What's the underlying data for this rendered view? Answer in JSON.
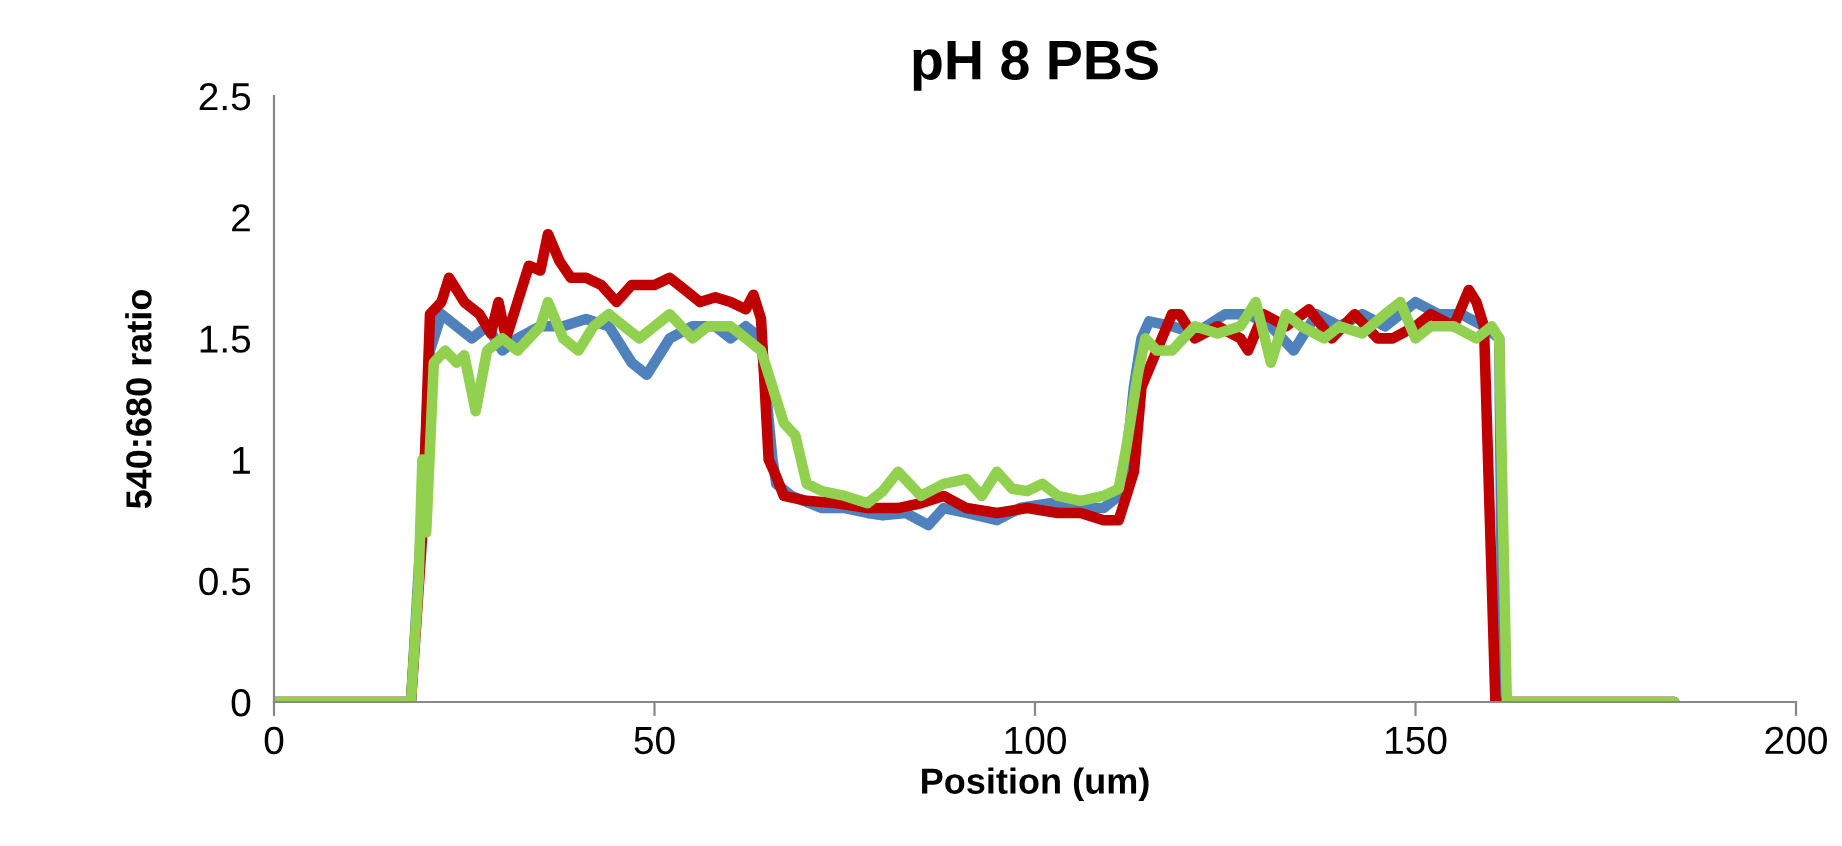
{
  "chart_data": {
    "type": "line",
    "title": "pH 8 PBS",
    "xlabel": "Position (um)",
    "ylabel": "540:680 ratio",
    "xlim": [
      0,
      200
    ],
    "xticks": [
      0,
      50,
      100,
      150,
      200
    ],
    "ylim": [
      0,
      2.5
    ],
    "yticks": [
      0,
      0.5,
      1,
      1.5,
      2,
      2.5
    ],
    "grid": false,
    "marker": "none",
    "line_style": "solid",
    "series": [
      {
        "color": "#4f81bd",
        "x": [
          0,
          18,
          19.5,
          20.5,
          22,
          24,
          26,
          28,
          30,
          32,
          35,
          38,
          41,
          44,
          47,
          49,
          52,
          55,
          58,
          60,
          62,
          64,
          65.5,
          66,
          68,
          72,
          75,
          78,
          80,
          83,
          86,
          88,
          91,
          95,
          98,
          102,
          106,
          109,
          111,
          112,
          113,
          114,
          115,
          118,
          121,
          125,
          128,
          131,
          134,
          137,
          140,
          143,
          146,
          150,
          153,
          156,
          159,
          161,
          161.5,
          184
        ],
        "values": [
          0,
          0,
          0.8,
          1.45,
          1.6,
          1.55,
          1.5,
          1.55,
          1.45,
          1.5,
          1.55,
          1.55,
          1.58,
          1.55,
          1.4,
          1.35,
          1.5,
          1.55,
          1.55,
          1.5,
          1.55,
          1.5,
          1.0,
          0.9,
          0.85,
          0.8,
          0.8,
          0.78,
          0.77,
          0.78,
          0.73,
          0.8,
          0.78,
          0.75,
          0.8,
          0.82,
          0.8,
          0.8,
          0.85,
          1.0,
          1.3,
          1.5,
          1.57,
          1.55,
          1.52,
          1.6,
          1.6,
          1.55,
          1.45,
          1.6,
          1.55,
          1.6,
          1.55,
          1.65,
          1.6,
          1.6,
          1.55,
          1.5,
          0,
          0
        ]
      },
      {
        "color": "#c00000",
        "x": [
          0,
          18,
          19.5,
          20.5,
          22,
          23,
          25,
          27,
          28.5,
          29.5,
          30.5,
          32,
          33.5,
          35,
          36,
          37.5,
          39,
          41,
          43,
          45,
          47,
          50,
          52,
          54,
          56,
          58,
          60,
          62,
          63,
          64,
          65,
          66,
          67,
          70,
          74,
          78,
          82,
          85,
          88,
          91,
          95,
          99,
          103,
          106,
          109,
          111,
          113,
          114,
          116,
          118,
          119,
          121,
          124,
          127,
          128,
          130,
          133,
          136,
          139,
          142,
          145,
          147,
          150,
          152,
          155,
          157,
          158,
          159,
          160.5,
          184
        ],
        "values": [
          0,
          0,
          0.7,
          1.6,
          1.65,
          1.75,
          1.65,
          1.6,
          1.52,
          1.65,
          1.5,
          1.65,
          1.8,
          1.78,
          1.93,
          1.82,
          1.75,
          1.75,
          1.72,
          1.65,
          1.72,
          1.72,
          1.75,
          1.7,
          1.65,
          1.67,
          1.65,
          1.62,
          1.68,
          1.58,
          1.0,
          0.93,
          0.85,
          0.83,
          0.82,
          0.8,
          0.8,
          0.82,
          0.85,
          0.8,
          0.78,
          0.8,
          0.78,
          0.78,
          0.75,
          0.75,
          0.95,
          1.3,
          1.45,
          1.6,
          1.6,
          1.5,
          1.55,
          1.5,
          1.45,
          1.6,
          1.55,
          1.62,
          1.5,
          1.6,
          1.5,
          1.5,
          1.55,
          1.6,
          1.55,
          1.7,
          1.65,
          1.55,
          0,
          0
        ]
      },
      {
        "color": "#92d050",
        "x": [
          0,
          18,
          19,
          19.5,
          20,
          21,
          22.5,
          24,
          25,
          26.5,
          28,
          30,
          32,
          35,
          36,
          38,
          40,
          42,
          44,
          46,
          48,
          50,
          52,
          55,
          57,
          60,
          62,
          64,
          65,
          67,
          68.5,
          70,
          72,
          75,
          78,
          80,
          82,
          85,
          88,
          91,
          93,
          95,
          97,
          99,
          101,
          103,
          106,
          109,
          111,
          112,
          113.5,
          114.5,
          116,
          118,
          121,
          124,
          127,
          129,
          131,
          133,
          135,
          138,
          140,
          143,
          146,
          148,
          150,
          152,
          155,
          158,
          160,
          161,
          162,
          184
        ],
        "values": [
          0,
          0,
          0.5,
          1.0,
          0.7,
          1.4,
          1.45,
          1.4,
          1.43,
          1.2,
          1.45,
          1.5,
          1.45,
          1.55,
          1.65,
          1.5,
          1.45,
          1.55,
          1.6,
          1.55,
          1.5,
          1.55,
          1.6,
          1.5,
          1.55,
          1.55,
          1.5,
          1.45,
          1.35,
          1.15,
          1.1,
          0.9,
          0.87,
          0.85,
          0.82,
          0.87,
          0.95,
          0.85,
          0.9,
          0.92,
          0.85,
          0.95,
          0.88,
          0.87,
          0.9,
          0.85,
          0.83,
          0.85,
          0.88,
          1.05,
          1.35,
          1.5,
          1.45,
          1.45,
          1.55,
          1.52,
          1.55,
          1.65,
          1.4,
          1.6,
          1.55,
          1.5,
          1.55,
          1.52,
          1.6,
          1.65,
          1.5,
          1.55,
          1.55,
          1.5,
          1.55,
          1.5,
          0,
          0
        ]
      }
    ]
  }
}
